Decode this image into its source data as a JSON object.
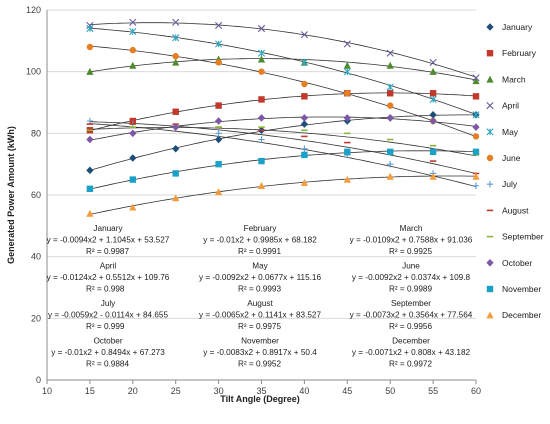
{
  "chart_data": {
    "type": "scatter",
    "title": "",
    "xlabel": "Tilt Angle (Degree)",
    "ylabel": "Generated Power Amount (kWh)",
    "xlim": [
      10,
      60
    ],
    "ylim": [
      0,
      120
    ],
    "xticks": [
      10,
      15,
      20,
      25,
      30,
      35,
      40,
      45,
      50,
      55,
      60
    ],
    "yticks": [
      0,
      20,
      40,
      60,
      80,
      100,
      120
    ],
    "grid": "horizontal",
    "legend_position": "right",
    "x": [
      15,
      20,
      25,
      30,
      35,
      40,
      45,
      50,
      55,
      60
    ],
    "series": [
      {
        "name": "January",
        "marker": "diamond",
        "color": "#1F4E79",
        "values": [
          68,
          72,
          75,
          78,
          81,
          83,
          84,
          85,
          86,
          86
        ],
        "trend": {
          "a": -0.0094,
          "b": 1.1045,
          "c": 53.527
        },
        "equation": "y = -0.0094x2 + 1.1045x + 53.527",
        "r2": "R² = 0.9987"
      },
      {
        "name": "February",
        "marker": "square",
        "color": "#C0392B",
        "values": [
          81,
          84,
          87,
          89,
          91,
          92,
          93,
          93,
          93,
          92
        ],
        "trend": {
          "a": -0.01,
          "b": 0.9985,
          "c": 68.182
        },
        "equation": "y = -0.01x2 + 0.9985x + 68.182",
        "r2": "R² = 0.9991"
      },
      {
        "name": "March",
        "marker": "triangle",
        "color": "#4E8A2E",
        "values": [
          100,
          102,
          103,
          104,
          104,
          103,
          102,
          102,
          100,
          97
        ],
        "trend": {
          "a": -0.0109,
          "b": 0.7588,
          "c": 91.036
        },
        "equation": "y = -0.0109x2 + 0.7588x + 91.036",
        "r2": "R² = 0.9925"
      },
      {
        "name": "April",
        "marker": "x",
        "color": "#6A5A9A",
        "values": [
          115,
          116,
          116,
          115,
          114,
          112,
          109,
          106,
          103,
          98
        ],
        "trend": {
          "a": -0.0124,
          "b": 0.5512,
          "c": 109.76
        },
        "equation": "y = -0.0124x2 + 0.5512x + 109.76",
        "r2": "R² = 0.998"
      },
      {
        "name": "May",
        "marker": "asterisk",
        "color": "#2FA5C0",
        "values": [
          114,
          113,
          111,
          109,
          106,
          103,
          100,
          95,
          91,
          86
        ],
        "trend": {
          "a": -0.0092,
          "b": 0.0677,
          "c": 115.16
        },
        "equation": "y = -0.0092x2 + 0.0677x + 115.16",
        "r2": "R² = 0.9993"
      },
      {
        "name": "June",
        "marker": "circle",
        "color": "#E67E22",
        "values": [
          108,
          107,
          105,
          103,
          100,
          96,
          93,
          89,
          84,
          79
        ],
        "trend": {
          "a": -0.0092,
          "b": 0.0374,
          "c": 109.8
        },
        "equation": "y = -0.0092x2 + 0.0374x + 109.8",
        "r2": "R² = 0.9989"
      },
      {
        "name": "July",
        "marker": "plus",
        "color": "#5B9BD5",
        "values": [
          84,
          83,
          82,
          80,
          78,
          75,
          73,
          70,
          67,
          63
        ],
        "trend": {
          "a": -0.0059,
          "b": -0.0114,
          "c": 84.655
        },
        "equation": "y = -0.0059x2 - 0.0114x + 84.655",
        "r2": "R² = 0.999"
      },
      {
        "name": "August",
        "marker": "dash",
        "color": "#C0392B",
        "values": [
          83,
          83,
          83,
          82,
          81,
          79,
          77,
          74,
          71,
          67
        ],
        "trend": {
          "a": -0.0065,
          "b": 0.1141,
          "c": 83.527
        },
        "equation": "y = -0.0065x2 + 0.1141x + 83.527",
        "r2": "R² = 0.9975"
      },
      {
        "name": "September",
        "marker": "dash",
        "color": "#8DB43A",
        "values": [
          81,
          82,
          82,
          82,
          82,
          81,
          80,
          78,
          76,
          73
        ],
        "trend": {
          "a": -0.0073,
          "b": 0.3564,
          "c": 77.564
        },
        "equation": "y = -0.0073x2 + 0.3564x + 77.564",
        "r2": "R² = 0.9956"
      },
      {
        "name": "October",
        "marker": "diamond",
        "color": "#7E57A8",
        "values": [
          78,
          80,
          82,
          84,
          85,
          85,
          85,
          85,
          84,
          82
        ],
        "trend": {
          "a": -0.01,
          "b": 0.8494,
          "c": 67.273
        },
        "equation": "y = -0.01x2 + 0.8494x + 67.273",
        "r2": "R² = 0.9884"
      },
      {
        "name": "November",
        "marker": "square",
        "color": "#1BA1C7",
        "values": [
          62,
          65,
          67,
          70,
          71,
          73,
          74,
          74,
          74,
          74
        ],
        "trend": {
          "a": -0.0083,
          "b": 0.8917,
          "c": 50.4
        },
        "equation": "y = -0.0083x2 + 0.8917x + 50.4",
        "r2": "R² = 0.9952"
      },
      {
        "name": "December",
        "marker": "triangle",
        "color": "#F39C3C",
        "values": [
          54,
          56,
          59,
          61,
          63,
          64,
          65,
          66,
          66,
          66
        ],
        "trend": {
          "a": -0.0071,
          "b": 0.808,
          "c": 43.182
        },
        "equation": "y = -0.0071x2 + 0.808x + 43.182",
        "r2": "R² = 0.9972"
      }
    ]
  }
}
